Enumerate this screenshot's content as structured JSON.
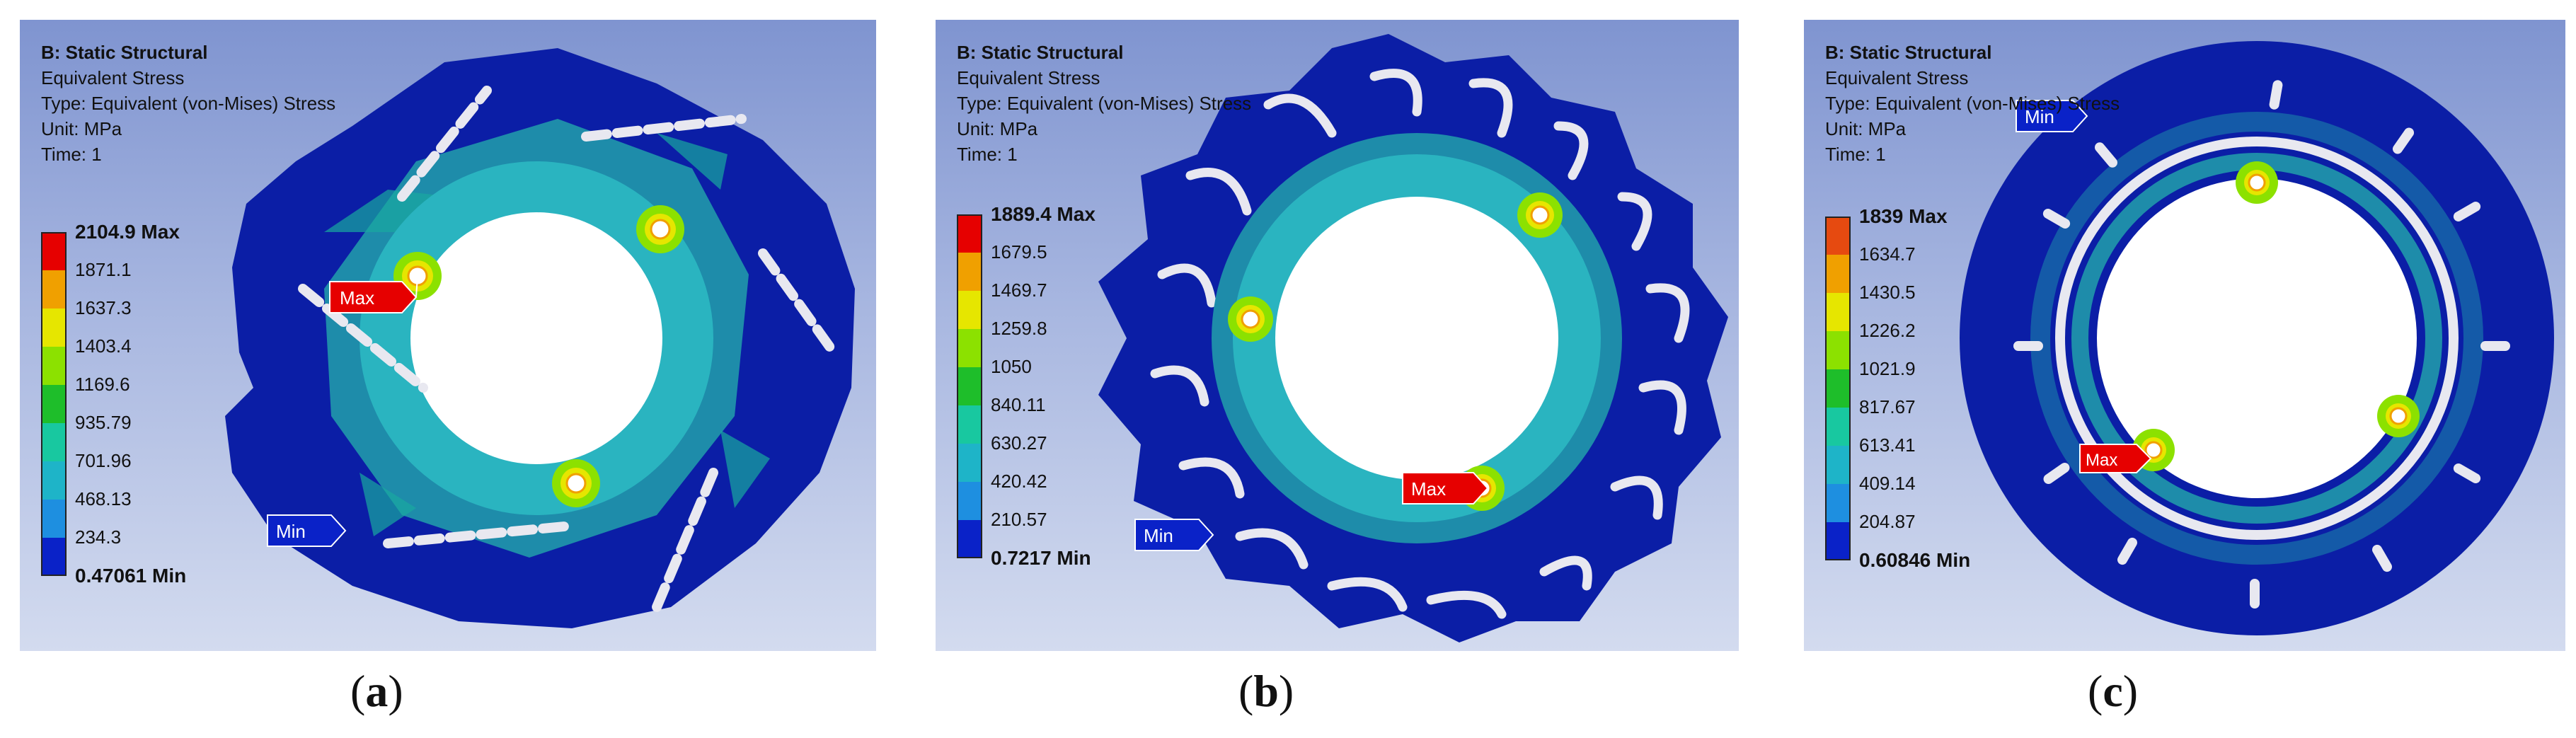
{
  "panels": [
    {
      "id": "a",
      "caption_open": "(",
      "caption_letter": "a",
      "caption_close": ")",
      "header": {
        "title": "B: Static Structural",
        "line1": "Equivalent Stress",
        "line2": "Type: Equivalent (von-Mises) Stress",
        "line3": "Unit: MPa",
        "line4": "Time: 1"
      },
      "legend": [
        "2104.9 Max",
        "1871.1",
        "1637.3",
        "1403.4",
        "1169.6",
        "935.79",
        "701.96",
        "468.13",
        "234.3",
        "0.47061 Min"
      ],
      "max_label": "Max",
      "min_label": "Min"
    },
    {
      "id": "b",
      "caption_open": "(",
      "caption_letter": "b",
      "caption_close": ")",
      "header": {
        "title": "B: Static Structural",
        "line1": "Equivalent Stress",
        "line2": "Type: Equivalent (von-Mises) Stress",
        "line3": "Unit: MPa",
        "line4": "Time: 1"
      },
      "legend": [
        "1889.4 Max",
        "1679.5",
        "1469.7",
        "1259.8",
        "1050",
        "840.11",
        "630.27",
        "420.42",
        "210.57",
        "0.7217 Min"
      ],
      "max_label": "Max",
      "min_label": "Min"
    },
    {
      "id": "c",
      "caption_open": "(",
      "caption_letter": "c",
      "caption_close": ")",
      "header": {
        "title": "B: Static Structural",
        "line1": "Equivalent Stress",
        "line2": "Type: Equivalent (von-Mises) Stress",
        "line3": "Unit: MPa",
        "line4": "Time: 1"
      },
      "legend": [
        "1839 Max",
        "1634.7",
        "1430.5",
        "1226.2",
        "1021.9",
        "817.67",
        "613.41",
        "409.14",
        "204.87",
        "0.60846 Min"
      ],
      "max_label": "Max",
      "min_label": "Min"
    }
  ],
  "colors": {
    "band_max": "#e60000",
    "band_2": "#f0a000",
    "band_3": "#e6e600",
    "band_4": "#8ce100",
    "band_5": "#1ebe2a",
    "band_6": "#18c8a0",
    "band_7": "#1eb4c8",
    "band_8": "#1e8fe0",
    "band_min": "#0a22c8",
    "body_low": "#0b1ea6",
    "body_mid": "#1e8caa",
    "panel_bg": "#8fa2d8"
  }
}
